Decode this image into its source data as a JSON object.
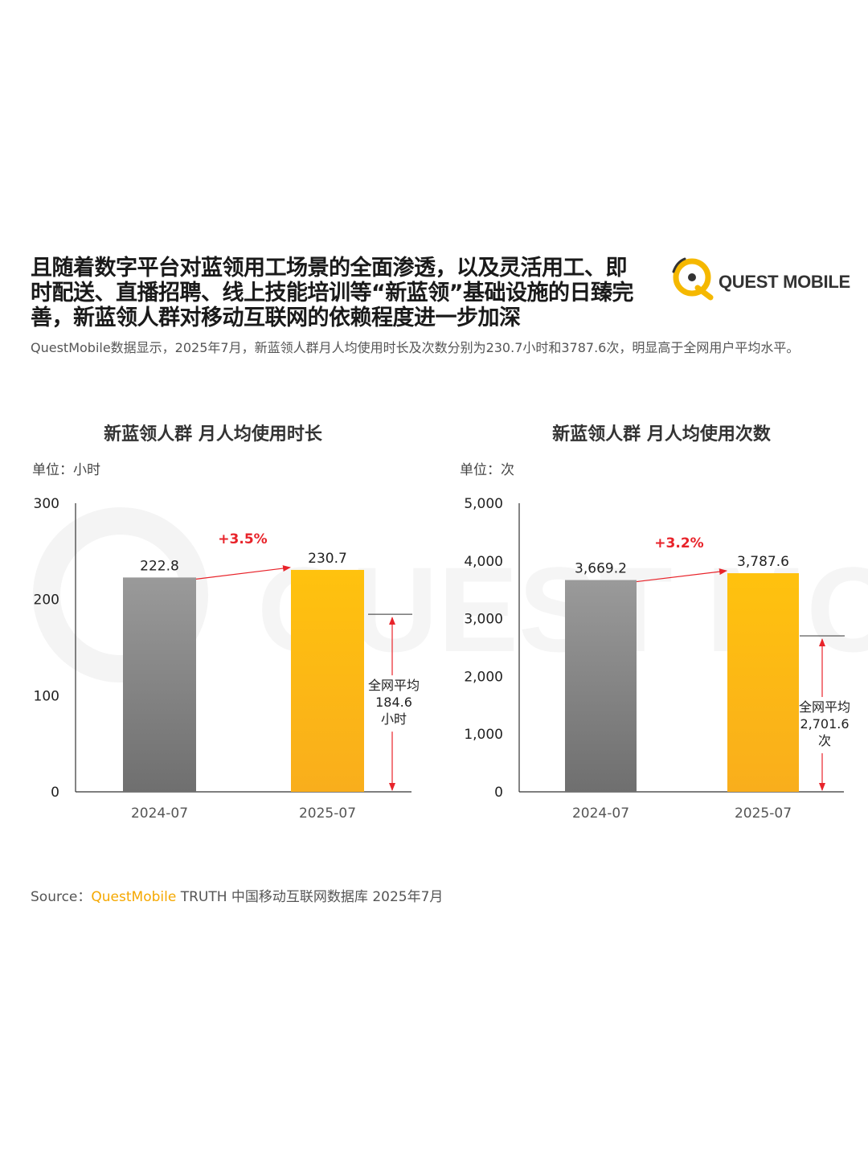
{
  "headline": {
    "line1": "且随着数字平台对蓝领用工场景的全面渗透，以及灵活用工、即",
    "line2": "时配送、直播招聘、线上技能培训等“新蓝领”基础设施的日臻完",
    "line3": "善，新蓝领人群对移动互联网的依赖程度进一步加深"
  },
  "logo": {
    "text": "QUEST MOBILE",
    "icon": "quest-mobile-logo-icon",
    "color": "#f5b800"
  },
  "subtitle": "QuestMobile数据显示，2025年7月，新蓝领人群月人均使用时长及次数分别为230.7小时和3787.6次，明显高于全网用户平均水平。",
  "source": {
    "prefix": "Source：",
    "brand": "QuestMobile",
    "rest": " TRUTH 中国移动互联网数据库 2025年7月"
  },
  "watermark": "QUEST MOBILE",
  "colors": {
    "gray_bar_top": "#9a9a9a",
    "gray_bar_bottom": "#6f6f6f",
    "yellow_bar_top": "#ffc20e",
    "yellow_bar_bottom": "#f9ae1c",
    "growth": "#e8232a"
  },
  "chart_data": [
    {
      "type": "bar",
      "title": "新蓝领人群 月人均使用时长",
      "unit_label": "单位：小时",
      "categories": [
        "2024-07",
        "2025-07"
      ],
      "values": [
        222.8,
        230.7
      ],
      "value_labels": [
        "222.8",
        "230.7"
      ],
      "ylim": [
        0,
        300
      ],
      "yticks": [
        0,
        100,
        200,
        300
      ],
      "ytick_labels": [
        "0",
        "100",
        "200",
        "300"
      ],
      "growth_label": "+3.5%",
      "average": {
        "value": 184.6,
        "label1": "全网平均",
        "label2": "184.6",
        "label3": "小时"
      }
    },
    {
      "type": "bar",
      "title": "新蓝领人群 月人均使用次数",
      "unit_label": "单位：次",
      "categories": [
        "2024-07",
        "2025-07"
      ],
      "values": [
        3669.2,
        3787.6
      ],
      "value_labels": [
        "3,669.2",
        "3,787.6"
      ],
      "ylim": [
        0,
        5000
      ],
      "yticks": [
        0,
        1000,
        2000,
        3000,
        4000,
        5000
      ],
      "ytick_labels": [
        "0",
        "1,000",
        "2,000",
        "3,000",
        "4,000",
        "5,000"
      ],
      "growth_label": "+3.2%",
      "average": {
        "value": 2701.6,
        "label1": "全网平均",
        "label2": "2,701.6",
        "label3": "次"
      }
    }
  ]
}
